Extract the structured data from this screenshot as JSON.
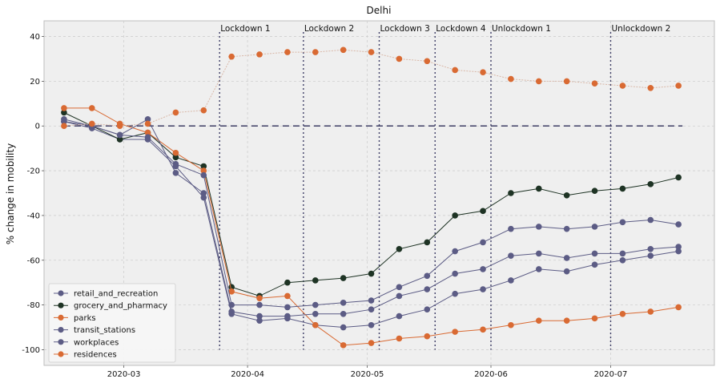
{
  "chart_data": {
    "type": "line",
    "title": "Delhi",
    "xlabel": "",
    "ylabel": "% change in mobility",
    "ylim": [
      -107,
      47
    ],
    "xlim": [
      "2020-02-10",
      "2020-07-27"
    ],
    "yticks": [
      40,
      20,
      0,
      -20,
      -40,
      -60,
      -80,
      -100
    ],
    "xticks": [
      {
        "date": "2020-03-01",
        "label": "2020-03"
      },
      {
        "date": "2020-04-01",
        "label": "2020-04"
      },
      {
        "date": "2020-05-01",
        "label": "2020-05"
      },
      {
        "date": "2020-06-01",
        "label": "2020-06"
      },
      {
        "date": "2020-07-01",
        "label": "2020-07"
      }
    ],
    "grid": true,
    "legend_position": "lower-left",
    "baseline": {
      "value": 0,
      "from": "2020-02-15",
      "to": "2020-07-19",
      "color": "#4a4a6e"
    },
    "x": [
      "2020-02-15",
      "2020-02-22",
      "2020-02-29",
      "2020-03-07",
      "2020-03-14",
      "2020-03-21",
      "2020-03-28",
      "2020-04-04",
      "2020-04-11",
      "2020-04-18",
      "2020-04-25",
      "2020-05-02",
      "2020-05-09",
      "2020-05-16",
      "2020-05-23",
      "2020-05-30",
      "2020-06-06",
      "2020-06-13",
      "2020-06-20",
      "2020-06-27",
      "2020-07-04",
      "2020-07-11",
      "2020-07-18"
    ],
    "events": [
      {
        "label": "Lockdown 1",
        "date": "2020-03-25"
      },
      {
        "label": "Lockdown 2",
        "date": "2020-04-15"
      },
      {
        "label": "Lockdown 3",
        "date": "2020-05-04"
      },
      {
        "label": "Lockdown 4",
        "date": "2020-05-18"
      },
      {
        "label": "Unlockdown 1",
        "date": "2020-06-01"
      },
      {
        "label": "Unlockdown 2",
        "date": "2020-07-01"
      }
    ],
    "series": [
      {
        "name": "retail_and_recreation",
        "color": "#5c5c85",
        "values": [
          2,
          -1,
          -6,
          -6,
          -18,
          -32,
          -84,
          -87,
          -86,
          -89,
          -90,
          -89,
          -85,
          -82,
          -75,
          -73,
          -69,
          -64,
          -65,
          -62,
          -60,
          -58,
          -56
        ]
      },
      {
        "name": "grocery_and_pharmacy",
        "color": "#1e3324",
        "values": [
          6,
          0,
          -6,
          -3,
          -14,
          -18,
          -72,
          -76,
          -70,
          -69,
          -68,
          -66,
          -55,
          -52,
          -40,
          -38,
          -30,
          -28,
          -31,
          -29,
          -28,
          -26,
          -23
        ]
      },
      {
        "name": "parks",
        "color": "#d96a33",
        "values": [
          8,
          8,
          1,
          -3,
          -12,
          -20,
          -74,
          -77,
          -76,
          -89,
          -98,
          -97,
          -95,
          -94,
          -92,
          -91,
          -89,
          -87,
          -87,
          -86,
          -84,
          -83,
          -81
        ]
      },
      {
        "name": "transit_stations",
        "color": "#5c5c85",
        "values": [
          3,
          0,
          -4,
          -5,
          -17,
          -22,
          -80,
          -80,
          -81,
          -80,
          -79,
          -78,
          -72,
          -67,
          -56,
          -52,
          -46,
          -45,
          -46,
          -45,
          -43,
          -42,
          -44
        ]
      },
      {
        "name": "workplaces",
        "color": "#5c5c85",
        "values": [
          2,
          0,
          -4,
          3,
          -21,
          -30,
          -83,
          -85,
          -85,
          -84,
          -84,
          -82,
          -76,
          -73,
          -66,
          -64,
          -58,
          -57,
          -59,
          -57,
          -57,
          -55,
          -54
        ]
      },
      {
        "name": "residences",
        "color": "#d96a33",
        "values": [
          0,
          1,
          0,
          1,
          6,
          7,
          31,
          32,
          33,
          33,
          34,
          33,
          30,
          29,
          25,
          24,
          21,
          20,
          20,
          19,
          18,
          17,
          18
        ]
      }
    ]
  }
}
